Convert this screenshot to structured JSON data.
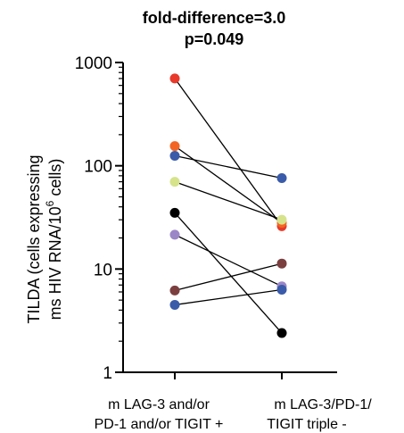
{
  "chart_data": {
    "type": "scatter",
    "title_lines": [
      "fold-difference=3.0",
      "p=0.049"
    ],
    "ylabel_line1": "TILDA (cells expressing",
    "ylabel_line2_prefix": "ms HIV RNA/10",
    "ylabel_line2_sup": "6",
    "ylabel_line2_suffix": " cells)",
    "yscale": "log",
    "ylim": [
      1,
      1000
    ],
    "yticks": [
      {
        "value": 1,
        "label": "1"
      },
      {
        "value": 10,
        "label": "10"
      },
      {
        "value": 100,
        "label": "100"
      },
      {
        "value": 1000,
        "label": "1000"
      }
    ],
    "categories": [
      {
        "lines": [
          "m LAG-3 and/or",
          "PD-1 and/or TIGIT +"
        ]
      },
      {
        "lines": [
          "m LAG-3/PD-1/",
          "TIGIT triple -"
        ]
      }
    ],
    "pairs": [
      {
        "color": "#e8392a",
        "values": [
          700,
          26
        ]
      },
      {
        "color": "#f26522",
        "values": [
          155,
          28
        ]
      },
      {
        "color": "#3a5ba9",
        "values": [
          125,
          76
        ]
      },
      {
        "color": "#d6e38b",
        "values": [
          70,
          30
        ]
      },
      {
        "color": "#000000",
        "values": [
          35,
          2.4
        ]
      },
      {
        "color": "#9b86c7",
        "values": [
          21.5,
          6.8
        ]
      },
      {
        "color": "#7b3f3f",
        "values": [
          6.2,
          11.3
        ]
      },
      {
        "color": "#3a5ba9",
        "values": [
          4.5,
          6.3
        ]
      }
    ]
  }
}
